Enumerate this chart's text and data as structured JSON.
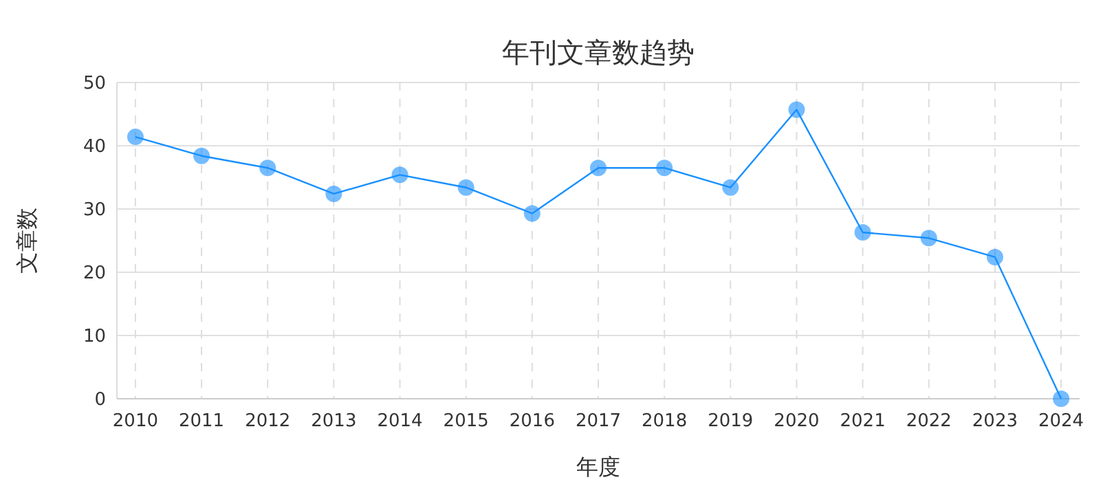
{
  "chart_data": {
    "type": "line",
    "title": "年刊文章数趋势",
    "xlabel": "年度",
    "ylabel": "文章数",
    "categories": [
      "2010",
      "2011",
      "2012",
      "2013",
      "2014",
      "2015",
      "2016",
      "2017",
      "2018",
      "2019",
      "2020",
      "2021",
      "2022",
      "2023",
      "2024"
    ],
    "series": [
      {
        "color": "#1890ff",
        "values": [
          41.4,
          38.4,
          36.5,
          32.4,
          35.4,
          33.4,
          29.3,
          36.5,
          36.5,
          33.4,
          45.7,
          26.3,
          25.4,
          22.4,
          0
        ]
      }
    ],
    "ylim": [
      0,
      50
    ],
    "yticks": [
      0,
      10,
      20,
      30,
      40,
      50
    ],
    "grid": true,
    "marker": "circle",
    "line_style": "solid"
  }
}
